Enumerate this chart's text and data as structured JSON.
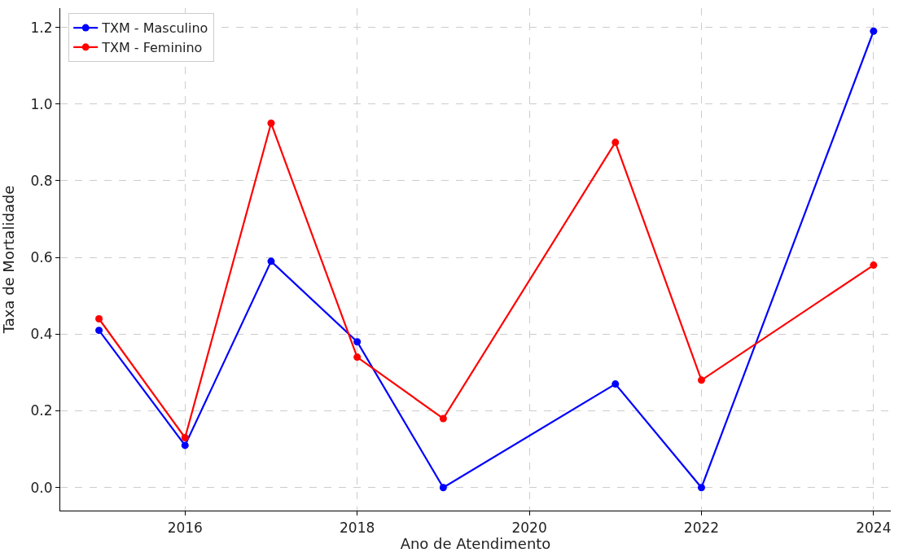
{
  "chart_data": {
    "type": "line",
    "xlabel": "Ano de Atendimento",
    "ylabel": "Taxa de Mortalidade",
    "x": [
      2015,
      2016,
      2017,
      2018,
      2019,
      2021,
      2022,
      2024
    ],
    "series": [
      {
        "name": "TXM - Masculino",
        "color": "#0000ff",
        "values": [
          0.41,
          0.11,
          0.59,
          0.38,
          0.0,
          0.27,
          0.0,
          1.19
        ]
      },
      {
        "name": "TXM - Feminino",
        "color": "#ff0000",
        "values": [
          0.44,
          0.13,
          0.95,
          0.34,
          0.18,
          0.9,
          0.28,
          0.58
        ]
      }
    ],
    "xlim": [
      2014.55,
      2024.2
    ],
    "xticks": [
      2016,
      2018,
      2020,
      2022,
      2024
    ],
    "ylim": [
      -0.06,
      1.25
    ],
    "yticks": [
      {
        "value": 0.0,
        "label": "0.0"
      },
      {
        "value": 0.2,
        "label": "0.2"
      },
      {
        "value": 0.4,
        "label": "0.4"
      },
      {
        "value": 0.6,
        "label": "0.6"
      },
      {
        "value": 0.8,
        "label": "0.8"
      },
      {
        "value": 1.0,
        "label": "1.0"
      },
      {
        "value": 1.2,
        "label": "1.2"
      }
    ],
    "grid": true,
    "legend": "top left",
    "marker": "circle",
    "line_style": "solid"
  }
}
